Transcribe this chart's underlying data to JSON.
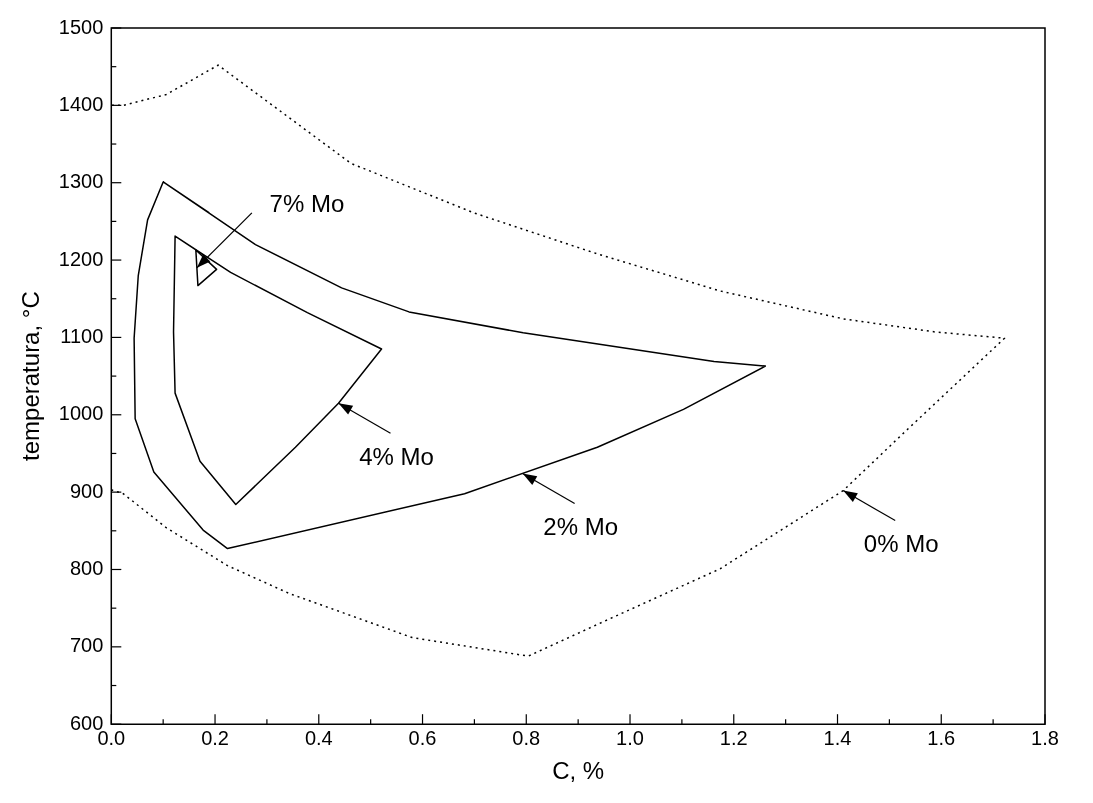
{
  "chart_data": {
    "type": "line",
    "xlabel": "C, %",
    "ylabel": "temperatura, °C",
    "xlim": [
      0,
      1.8
    ],
    "ylim": [
      600,
      1500
    ],
    "xticks": [
      {
        "value": 0,
        "label": "0.0"
      },
      {
        "value": 0.1,
        "label": null
      },
      0.2,
      {
        "value": 0.3,
        "label": null
      },
      0.4,
      {
        "value": 0.5,
        "label": null
      },
      0.6,
      {
        "value": 0.7,
        "label": null
      },
      0.8,
      {
        "value": 0.9,
        "label": null
      },
      {
        "value": 1,
        "label": "1.0"
      },
      {
        "value": 1.1,
        "label": null
      },
      1.2,
      {
        "value": 1.3,
        "label": null
      },
      1.4,
      {
        "value": 1.5,
        "label": null
      },
      1.6,
      {
        "value": 1.7,
        "label": null
      },
      1.8
    ],
    "yticks": [
      600,
      {
        "value": 650,
        "label": null
      },
      700,
      {
        "value": 750,
        "label": null
      },
      800,
      {
        "value": 850,
        "label": null
      },
      900,
      {
        "value": 950,
        "label": null
      },
      1000,
      {
        "value": 1050,
        "label": null
      },
      1100,
      {
        "value": 1150,
        "label": null
      },
      1200,
      {
        "value": 1250,
        "label": null
      },
      1300,
      {
        "value": 1350,
        "label": null
      },
      1400,
      {
        "value": 1450,
        "label": null
      },
      1500
    ],
    "grid": false,
    "legend": false,
    "marker": "none",
    "series": [
      {
        "color": "#000000",
        "line_style": "dotted",
        "x": [
          0,
          0.023,
          0.106,
          0.224,
          0.343,
          0.58,
          0.804,
          0.937,
          1.174,
          1.411,
          1.53,
          1.722,
          1.589,
          1.411,
          1.174,
          0.937,
          0.699,
          0.462,
          0.206,
          0.106,
          0.023,
          0
        ],
        "values": [
          903,
          898,
          854,
          805,
          769,
          712,
          688,
          729,
          801,
          902,
          978,
          1099,
          1107,
          1124,
          1160,
          1208,
          1261,
          1325,
          1452,
          1414,
          1400,
          1400
        ]
      },
      {
        "color": "#000000",
        "line_style": "solid",
        "x": [
          0.1,
          0.278,
          0.444,
          0.574,
          0.794,
          1.162,
          1.261,
          1.103,
          0.937,
          0.681,
          0.224,
          0.177,
          0.082,
          0.046,
          0.044,
          0.052,
          0.07,
          0.1,
          0.189
        ],
        "values": [
          1301,
          1220,
          1164,
          1133,
          1106,
          1069,
          1063,
          1007,
          958,
          898,
          827,
          851,
          926,
          995,
          1099,
          1180,
          1252,
          1301,
          1261
        ]
      },
      {
        "color": "#000000",
        "line_style": "solid",
        "x": [
          0.123,
          0.23,
          0.378,
          0.521,
          0.438,
          0.355,
          0.24,
          0.171,
          0.123,
          0.12,
          0.123,
          0.177
        ],
        "values": [
          1231,
          1184,
          1132,
          1085,
          1015,
          958,
          884,
          940,
          1028,
          1107,
          1231,
          1207
        ]
      },
      {
        "color": "#000000",
        "line_style": "solid",
        "x": [
          0.163,
          0.167,
          0.203,
          0.163,
          0.165
        ],
        "values": [
          1213,
          1167,
          1188,
          1213,
          1190
        ]
      }
    ],
    "annotations": [
      {
        "text": "7% Mo",
        "x": 0.165,
        "y": 1190
      },
      {
        "text": "4% Mo",
        "x": 0.438,
        "y": 1015
      },
      {
        "text": "2% Mo",
        "x": 0.793,
        "y": 924
      },
      {
        "text": "0% Mo",
        "x": 1.411,
        "y": 902
      }
    ]
  }
}
